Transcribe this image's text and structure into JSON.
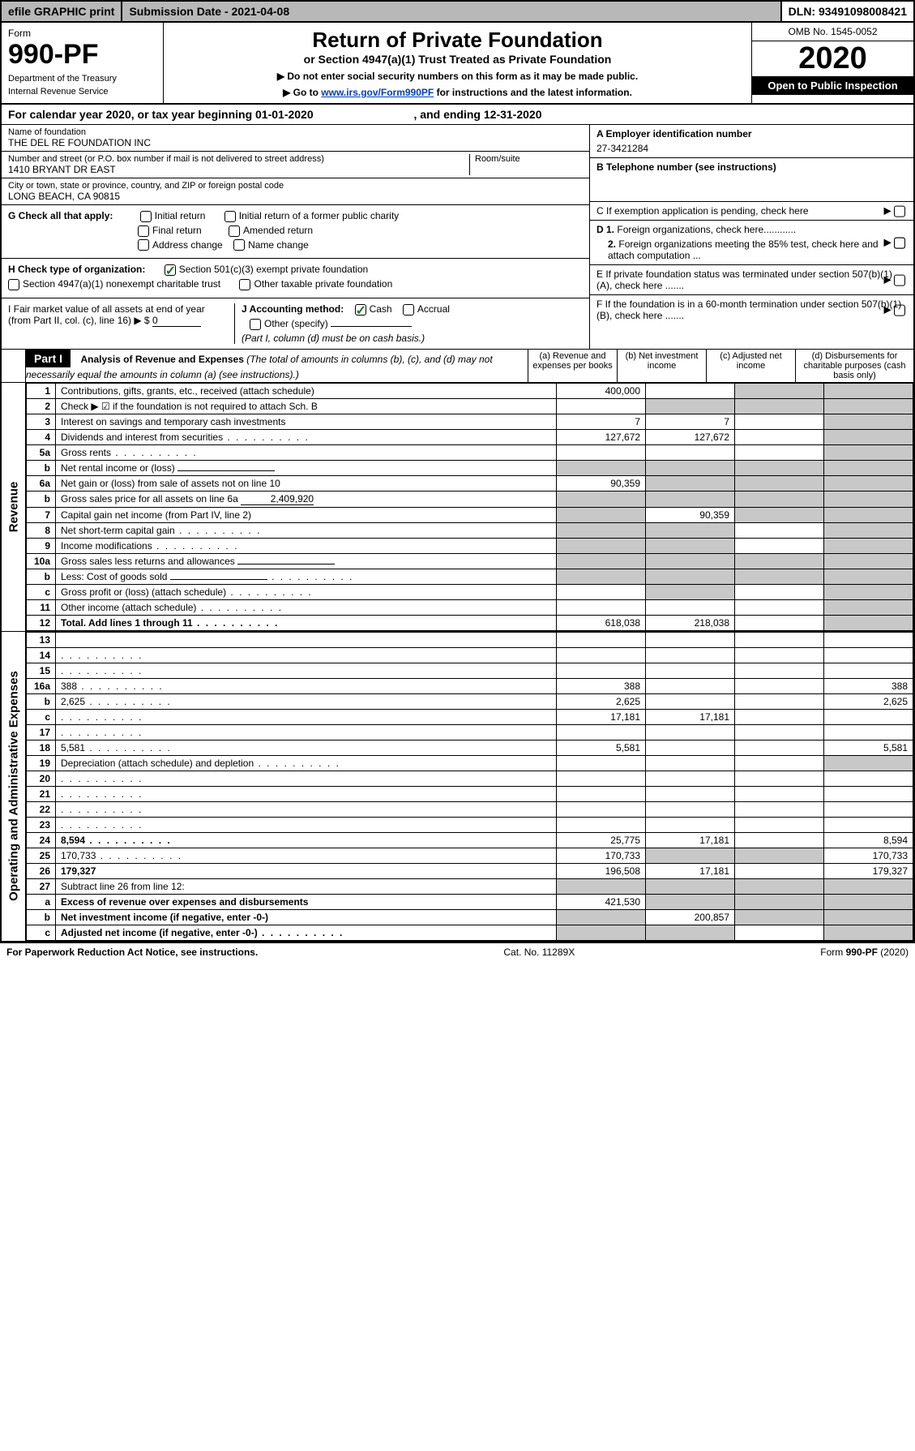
{
  "topbar": {
    "efile": "efile GRAPHIC print",
    "subdate_label": "Submission Date - ",
    "subdate": "2021-04-08",
    "dln_label": "DLN: ",
    "dln": "93491098008421"
  },
  "header": {
    "form_label": "Form",
    "form_number": "990-PF",
    "dept1": "Department of the Treasury",
    "dept2": "Internal Revenue Service",
    "main_title": "Return of Private Foundation",
    "sub_title": "or Section 4947(a)(1) Trust Treated as Private Foundation",
    "instruction1": "▶ Do not enter social security numbers on this form as it may be made public.",
    "instruction2_pre": "▶ Go to ",
    "instruction2_link": "www.irs.gov/Form990PF",
    "instruction2_post": " for instructions and the latest information.",
    "omb": "OMB No. 1545-0052",
    "year": "2020",
    "open_public": "Open to Public Inspection"
  },
  "cal_year": {
    "text_pre": "For calendar year 2020, or tax year beginning ",
    "begin": "01-01-2020",
    "text_mid": " , and ending ",
    "end": "12-31-2020"
  },
  "info": {
    "name_label": "Name of foundation",
    "name": "THE DEL RE FOUNDATION INC",
    "street_label": "Number and street (or P.O. box number if mail is not delivered to street address)",
    "street": "1410 BRYANT DR EAST",
    "room_label": "Room/suite",
    "city_label": "City or town, state or province, country, and ZIP or foreign postal code",
    "city": "LONG BEACH, CA  90815",
    "A_label": "A Employer identification number",
    "A_value": "27-3421284",
    "B_label": "B Telephone number (see instructions)",
    "C_label": "C If exemption application is pending, check here",
    "D1_label": "D 1. Foreign organizations, check here............",
    "D2_label": "2. Foreign organizations meeting the 85% test, check here and attach computation ...",
    "E_label": "E If private foundation status was terminated under section 507(b)(1)(A), check here .......",
    "F_label": "F If the foundation is in a 60-month termination under section 507(b)(1)(B), check here .......",
    "G_label": "G Check all that apply:",
    "G_opts": [
      "Initial return",
      "Initial return of a former public charity",
      "Final return",
      "Amended return",
      "Address change",
      "Name change"
    ],
    "H_label": "H Check type of organization:",
    "H_opt1": "Section 501(c)(3) exempt private foundation",
    "H_opt2": "Section 4947(a)(1) nonexempt charitable trust",
    "H_opt3": "Other taxable private foundation",
    "I_label": "I Fair market value of all assets at end of year (from Part II, col. (c), line 16) ▶ $ ",
    "I_value": "0",
    "J_label": "J Accounting method:",
    "J_opt1": "Cash",
    "J_opt2": "Accrual",
    "J_opt3": "Other (specify)",
    "J_note": "(Part I, column (d) must be on cash basis.)"
  },
  "part1": {
    "label": "Part I",
    "title": "Analysis of Revenue and Expenses",
    "note": "(The total of amounts in columns (b), (c), and (d) may not necessarily equal the amounts in column (a) (see instructions).)",
    "col_a": "(a) Revenue and expenses per books",
    "col_b": "(b) Net investment income",
    "col_c": "(c) Adjusted net income",
    "col_d": "(d) Disbursements for charitable purposes (cash basis only)"
  },
  "side_labels": {
    "revenue": "Revenue",
    "expenses": "Operating and Administrative Expenses"
  },
  "rows": [
    {
      "n": "1",
      "d": "Contributions, gifts, grants, etc., received (attach schedule)",
      "a": "400,000",
      "b": "",
      "c_grey": true,
      "d_grey": true
    },
    {
      "n": "2",
      "d": "Check ▶ ☑ if the foundation is not required to attach Sch. B",
      "a": "",
      "b_grey": true,
      "c_grey": true,
      "d_grey": true,
      "bold_not": true
    },
    {
      "n": "3",
      "d": "Interest on savings and temporary cash investments",
      "a": "7",
      "b": "7",
      "c": "",
      "d_grey": true
    },
    {
      "n": "4",
      "d": "Dividends and interest from securities",
      "a": "127,672",
      "b": "127,672",
      "c": "",
      "d_grey": true,
      "dots": true
    },
    {
      "n": "5a",
      "d": "Gross rents",
      "a": "",
      "b": "",
      "c": "",
      "d_grey": true,
      "dots": true
    },
    {
      "n": "b",
      "d": "Net rental income or (loss)",
      "a_grey": true,
      "b_grey": true,
      "c_grey": true,
      "d_grey": true,
      "inline_field": true
    },
    {
      "n": "6a",
      "d": "Net gain or (loss) from sale of assets not on line 10",
      "a": "90,359",
      "b_grey": true,
      "c_grey": true,
      "d_grey": true
    },
    {
      "n": "b",
      "d": "Gross sales price for all assets on line 6a",
      "a_grey": true,
      "b_grey": true,
      "c_grey": true,
      "d_grey": true,
      "inline_value": "2,409,920"
    },
    {
      "n": "7",
      "d": "Capital gain net income (from Part IV, line 2)",
      "a_grey": true,
      "b": "90,359",
      "c_grey": true,
      "d_grey": true
    },
    {
      "n": "8",
      "d": "Net short-term capital gain",
      "a_grey": true,
      "b_grey": true,
      "c": "",
      "d_grey": true,
      "dots": true
    },
    {
      "n": "9",
      "d": "Income modifications",
      "a_grey": true,
      "b_grey": true,
      "c": "",
      "d_grey": true,
      "dots": true
    },
    {
      "n": "10a",
      "d": "Gross sales less returns and allowances",
      "a_grey": true,
      "b_grey": true,
      "c_grey": true,
      "d_grey": true,
      "inline_field": true
    },
    {
      "n": "b",
      "d": "Less: Cost of goods sold",
      "a_grey": true,
      "b_grey": true,
      "c_grey": true,
      "d_grey": true,
      "inline_field": true,
      "dots": true
    },
    {
      "n": "c",
      "d": "Gross profit or (loss) (attach schedule)",
      "a": "",
      "b_grey": true,
      "c": "",
      "d_grey": true,
      "dots": true
    },
    {
      "n": "11",
      "d": "Other income (attach schedule)",
      "a": "",
      "b": "",
      "c": "",
      "d_grey": true,
      "dots": true
    },
    {
      "n": "12",
      "d": "Total. Add lines 1 through 11",
      "a": "618,038",
      "b": "218,038",
      "c": "",
      "d_grey": true,
      "bold": true,
      "dots": true
    }
  ],
  "exp_rows": [
    {
      "n": "13",
      "d": "",
      "a": "",
      "b": "",
      "c": ""
    },
    {
      "n": "14",
      "d": "",
      "a": "",
      "b": "",
      "c": "",
      "dots": true
    },
    {
      "n": "15",
      "d": "",
      "a": "",
      "b": "",
      "c": "",
      "dots": true
    },
    {
      "n": "16a",
      "d": "388",
      "a": "388",
      "b": "",
      "c": "",
      "dots": true
    },
    {
      "n": "b",
      "d": "2,625",
      "a": "2,625",
      "b": "",
      "c": "",
      "dots": true
    },
    {
      "n": "c",
      "d": "",
      "a": "17,181",
      "b": "17,181",
      "c": "",
      "dots": true
    },
    {
      "n": "17",
      "d": "",
      "a": "",
      "b": "",
      "c": "",
      "dots": true
    },
    {
      "n": "18",
      "d": "5,581",
      "a": "5,581",
      "b": "",
      "c": "",
      "dots": true
    },
    {
      "n": "19",
      "d": "Depreciation (attach schedule) and depletion",
      "a": "",
      "b": "",
      "c": "",
      "d_grey": true,
      "dots": true
    },
    {
      "n": "20",
      "d": "",
      "a": "",
      "b": "",
      "c": "",
      "dots": true
    },
    {
      "n": "21",
      "d": "",
      "a": "",
      "b": "",
      "c": "",
      "dots": true
    },
    {
      "n": "22",
      "d": "",
      "a": "",
      "b": "",
      "c": "",
      "dots": true
    },
    {
      "n": "23",
      "d": "",
      "a": "",
      "b": "",
      "c": "",
      "dots": true
    },
    {
      "n": "24",
      "d": "8,594",
      "a": "25,775",
      "b": "17,181",
      "c": "",
      "bold": true,
      "dots": true
    },
    {
      "n": "25",
      "d": "170,733",
      "a": "170,733",
      "b_grey": true,
      "c_grey": true,
      "dots": true
    },
    {
      "n": "26",
      "d": "179,327",
      "a": "196,508",
      "b": "17,181",
      "c": "",
      "bold": true
    },
    {
      "n": "27",
      "d": "Subtract line 26 from line 12:",
      "a_grey": true,
      "b_grey": true,
      "c_grey": true,
      "d_grey": true
    },
    {
      "n": "a",
      "d": "Excess of revenue over expenses and disbursements",
      "a": "421,530",
      "b_grey": true,
      "c_grey": true,
      "d_grey": true,
      "bold": true
    },
    {
      "n": "b",
      "d": "Net investment income (if negative, enter -0-)",
      "a_grey": true,
      "b": "200,857",
      "c_grey": true,
      "d_grey": true,
      "bold": true
    },
    {
      "n": "c",
      "d": "Adjusted net income (if negative, enter -0-)",
      "a_grey": true,
      "b_grey": true,
      "c": "",
      "d_grey": true,
      "bold": true,
      "dots": true
    }
  ],
  "footer": {
    "left": "For Paperwork Reduction Act Notice, see instructions.",
    "mid": "Cat. No. 11289X",
    "right": "Form 990-PF (2020)"
  },
  "colors": {
    "grey_bg": "#c8c8c8",
    "topbar_grey": "#b8b8b8",
    "check_green": "#2a7030",
    "link_blue": "#0040c0"
  }
}
